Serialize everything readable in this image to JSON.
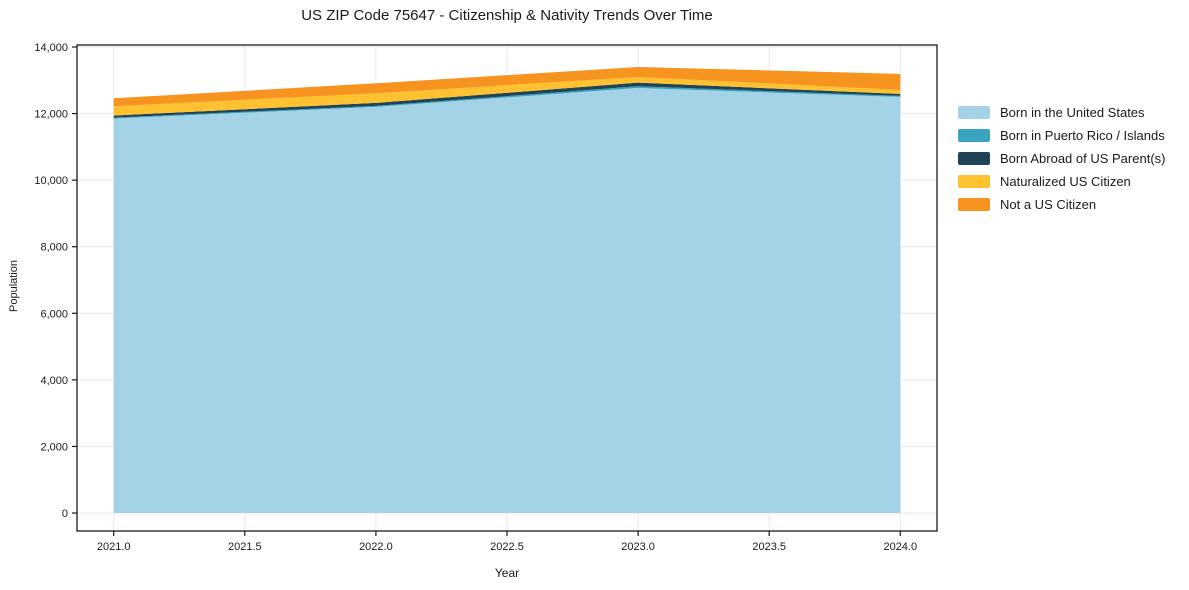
{
  "title": "US ZIP Code 75647 - Citizenship & Nativity Trends Over Time",
  "chart_data": {
    "type": "area",
    "stacked": true,
    "title": "US ZIP Code 75647 - Citizenship & Nativity Trends Over Time",
    "xlabel": "Year",
    "ylabel": "Population",
    "x": [
      2021,
      2022,
      2023,
      2024
    ],
    "series": [
      {
        "name": "Born in the United States",
        "color": "#a4d3e8",
        "values": [
          11850,
          12200,
          12770,
          12500
        ]
      },
      {
        "name": "Born in Puerto Rico / Islands",
        "color": "#3aa3c0",
        "values": [
          30,
          30,
          50,
          30
        ]
      },
      {
        "name": "Born Abroad of US Parent(s)",
        "color": "#1f4455",
        "values": [
          60,
          90,
          110,
          60
        ]
      },
      {
        "name": "Naturalized US Citizen",
        "color": "#fdc132",
        "values": [
          280,
          290,
          170,
          120
        ]
      },
      {
        "name": "Not a US Citizen",
        "color": "#f6941f",
        "values": [
          240,
          300,
          300,
          480
        ]
      }
    ],
    "totals": [
      12460,
      12910,
      13400,
      13190
    ],
    "xlim": [
      2020.86,
      2024.14
    ],
    "ylim": [
      -540,
      14060
    ],
    "xticks": {
      "values": [
        2021.0,
        2021.5,
        2022.0,
        2022.5,
        2023.0,
        2023.5,
        2024.0
      ],
      "labels": [
        "2021.0",
        "2021.5",
        "2022.0",
        "2022.5",
        "2023.0",
        "2023.5",
        "2024.0"
      ]
    },
    "yticks": {
      "values": [
        0,
        2000,
        4000,
        6000,
        8000,
        10000,
        12000,
        14000
      ],
      "labels": [
        "0",
        "2,000",
        "4,000",
        "6,000",
        "8,000",
        "10,000",
        "12,000",
        "14,000"
      ]
    },
    "grid": true,
    "legend_position": "right-outside"
  },
  "colors": {
    "grid": "#e9e9e9",
    "axis": "#1a1a1a",
    "text": "#1a1a1a",
    "background": "#ffffff"
  }
}
